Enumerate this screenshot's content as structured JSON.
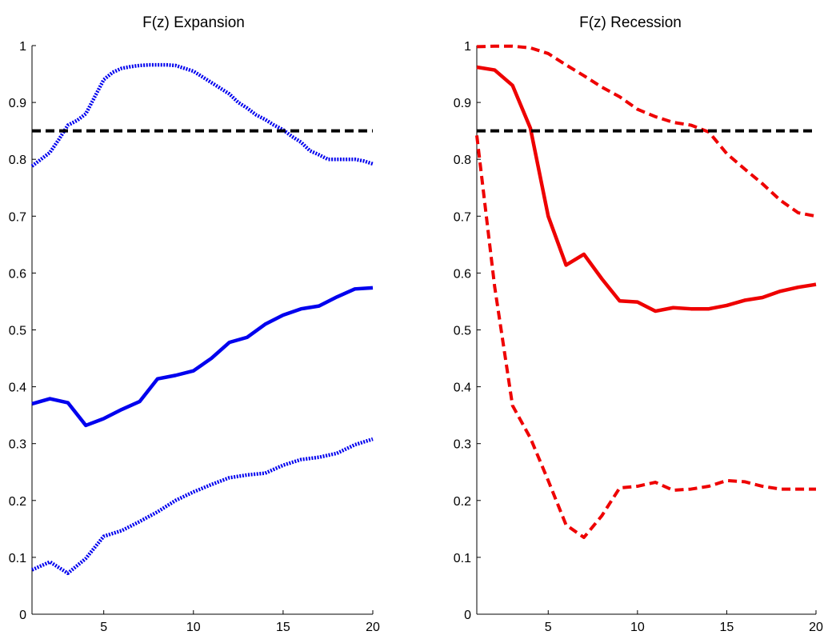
{
  "chart_data": [
    {
      "type": "line",
      "title": "F(z) Expansion",
      "xlabel": "",
      "ylabel": "",
      "xlim": [
        1,
        20
      ],
      "ylim": [
        0,
        1
      ],
      "x_ticks": [
        5,
        10,
        15,
        20
      ],
      "y_ticks": [
        0,
        0.1,
        0.2,
        0.3,
        0.4,
        0.5,
        0.6,
        0.7,
        0.8,
        0.9,
        1
      ],
      "y_tick_labels": [
        "0",
        "0.1",
        "0.2",
        "0.3",
        "0.4",
        "0.5",
        "0.6",
        "0.7",
        "0.8",
        "0.9",
        "1"
      ],
      "grid": false,
      "series": [
        {
          "style": "solid",
          "color": "#0000ee",
          "x": [
            1,
            2,
            3,
            4,
            5,
            6,
            7,
            8,
            9,
            10,
            11,
            12,
            13,
            14,
            15,
            16,
            17,
            18,
            19,
            20
          ],
          "values": [
            0.37,
            0.379,
            0.372,
            0.332,
            0.344,
            0.36,
            0.374,
            0.414,
            0.42,
            0.428,
            0.45,
            0.478,
            0.487,
            0.51,
            0.526,
            0.537,
            0.542,
            0.558,
            0.572,
            0.574
          ]
        },
        {
          "style": "dotted",
          "color": "#0000ee",
          "x": [
            1,
            1.5,
            2,
            2.5,
            3,
            3.5,
            4,
            4.5,
            5,
            5.5,
            6,
            6.5,
            7,
            7.5,
            8,
            8.5,
            9,
            9.5,
            10,
            10.5,
            11,
            11.5,
            12,
            12.5,
            13,
            13.5,
            14,
            14.5,
            15,
            15.5,
            16,
            16.5,
            17,
            17.5,
            18,
            18.5,
            19,
            19.5,
            20
          ],
          "values": [
            0.788,
            0.8,
            0.812,
            0.835,
            0.86,
            0.868,
            0.88,
            0.91,
            0.94,
            0.953,
            0.96,
            0.963,
            0.965,
            0.966,
            0.966,
            0.966,
            0.965,
            0.96,
            0.955,
            0.945,
            0.935,
            0.925,
            0.915,
            0.9,
            0.89,
            0.878,
            0.87,
            0.86,
            0.852,
            0.84,
            0.83,
            0.815,
            0.808,
            0.8,
            0.8,
            0.8,
            0.8,
            0.797,
            0.792
          ]
        },
        {
          "style": "dotted",
          "color": "#0000ee",
          "x": [
            1,
            2,
            3,
            4,
            5,
            6,
            7,
            8,
            9,
            10,
            11,
            12,
            13,
            14,
            15,
            16,
            17,
            18,
            19,
            20
          ],
          "values": [
            0.078,
            0.092,
            0.072,
            0.098,
            0.137,
            0.147,
            0.163,
            0.18,
            0.2,
            0.215,
            0.228,
            0.24,
            0.245,
            0.248,
            0.262,
            0.272,
            0.276,
            0.283,
            0.298,
            0.308
          ]
        },
        {
          "style": "dashed",
          "color": "#000000",
          "x": [
            1,
            20
          ],
          "values": [
            0.85,
            0.85
          ]
        }
      ]
    },
    {
      "type": "line",
      "title": "F(z) Recession",
      "xlabel": "",
      "ylabel": "",
      "xlim": [
        1,
        20
      ],
      "ylim": [
        0,
        1
      ],
      "x_ticks": [
        5,
        10,
        15,
        20
      ],
      "y_ticks": [
        0,
        0.1,
        0.2,
        0.3,
        0.4,
        0.5,
        0.6,
        0.7,
        0.8,
        0.9,
        1
      ],
      "y_tick_labels": [
        "0",
        "0.1",
        "0.2",
        "0.3",
        "0.4",
        "0.5",
        "0.6",
        "0.7",
        "0.8",
        "0.9",
        "1"
      ],
      "grid": false,
      "series": [
        {
          "style": "solid",
          "color": "#ee0000",
          "x": [
            1,
            2,
            3,
            4,
            5,
            6,
            7,
            8,
            9,
            10,
            11,
            12,
            13,
            14,
            15,
            16,
            17,
            18,
            19,
            20
          ],
          "values": [
            0.962,
            0.957,
            0.93,
            0.855,
            0.7,
            0.614,
            0.633,
            0.59,
            0.551,
            0.549,
            0.533,
            0.539,
            0.537,
            0.537,
            0.543,
            0.552,
            0.557,
            0.568,
            0.575,
            0.58
          ]
        },
        {
          "style": "dashed",
          "color": "#ee0000",
          "x": [
            1,
            2,
            3,
            4,
            5,
            6,
            7,
            8,
            9,
            10,
            11,
            12,
            13,
            14,
            15,
            16,
            17,
            18,
            19,
            20
          ],
          "values": [
            0.998,
            0.999,
            0.999,
            0.996,
            0.986,
            0.966,
            0.947,
            0.927,
            0.91,
            0.888,
            0.875,
            0.865,
            0.86,
            0.848,
            0.81,
            0.783,
            0.757,
            0.728,
            0.706,
            0.7
          ]
        },
        {
          "style": "dashed",
          "color": "#ee0000",
          "x": [
            1,
            2,
            3,
            4,
            5,
            6,
            7,
            8,
            9,
            10,
            11,
            12,
            13,
            14,
            15,
            16,
            17,
            18,
            19,
            20
          ],
          "values": [
            0.842,
            0.576,
            0.367,
            0.31,
            0.235,
            0.157,
            0.135,
            0.173,
            0.222,
            0.225,
            0.232,
            0.218,
            0.22,
            0.225,
            0.235,
            0.233,
            0.225,
            0.22,
            0.22,
            0.22
          ]
        },
        {
          "style": "dashed",
          "color": "#000000",
          "x": [
            1,
            20
          ],
          "values": [
            0.85,
            0.85
          ]
        }
      ]
    }
  ]
}
